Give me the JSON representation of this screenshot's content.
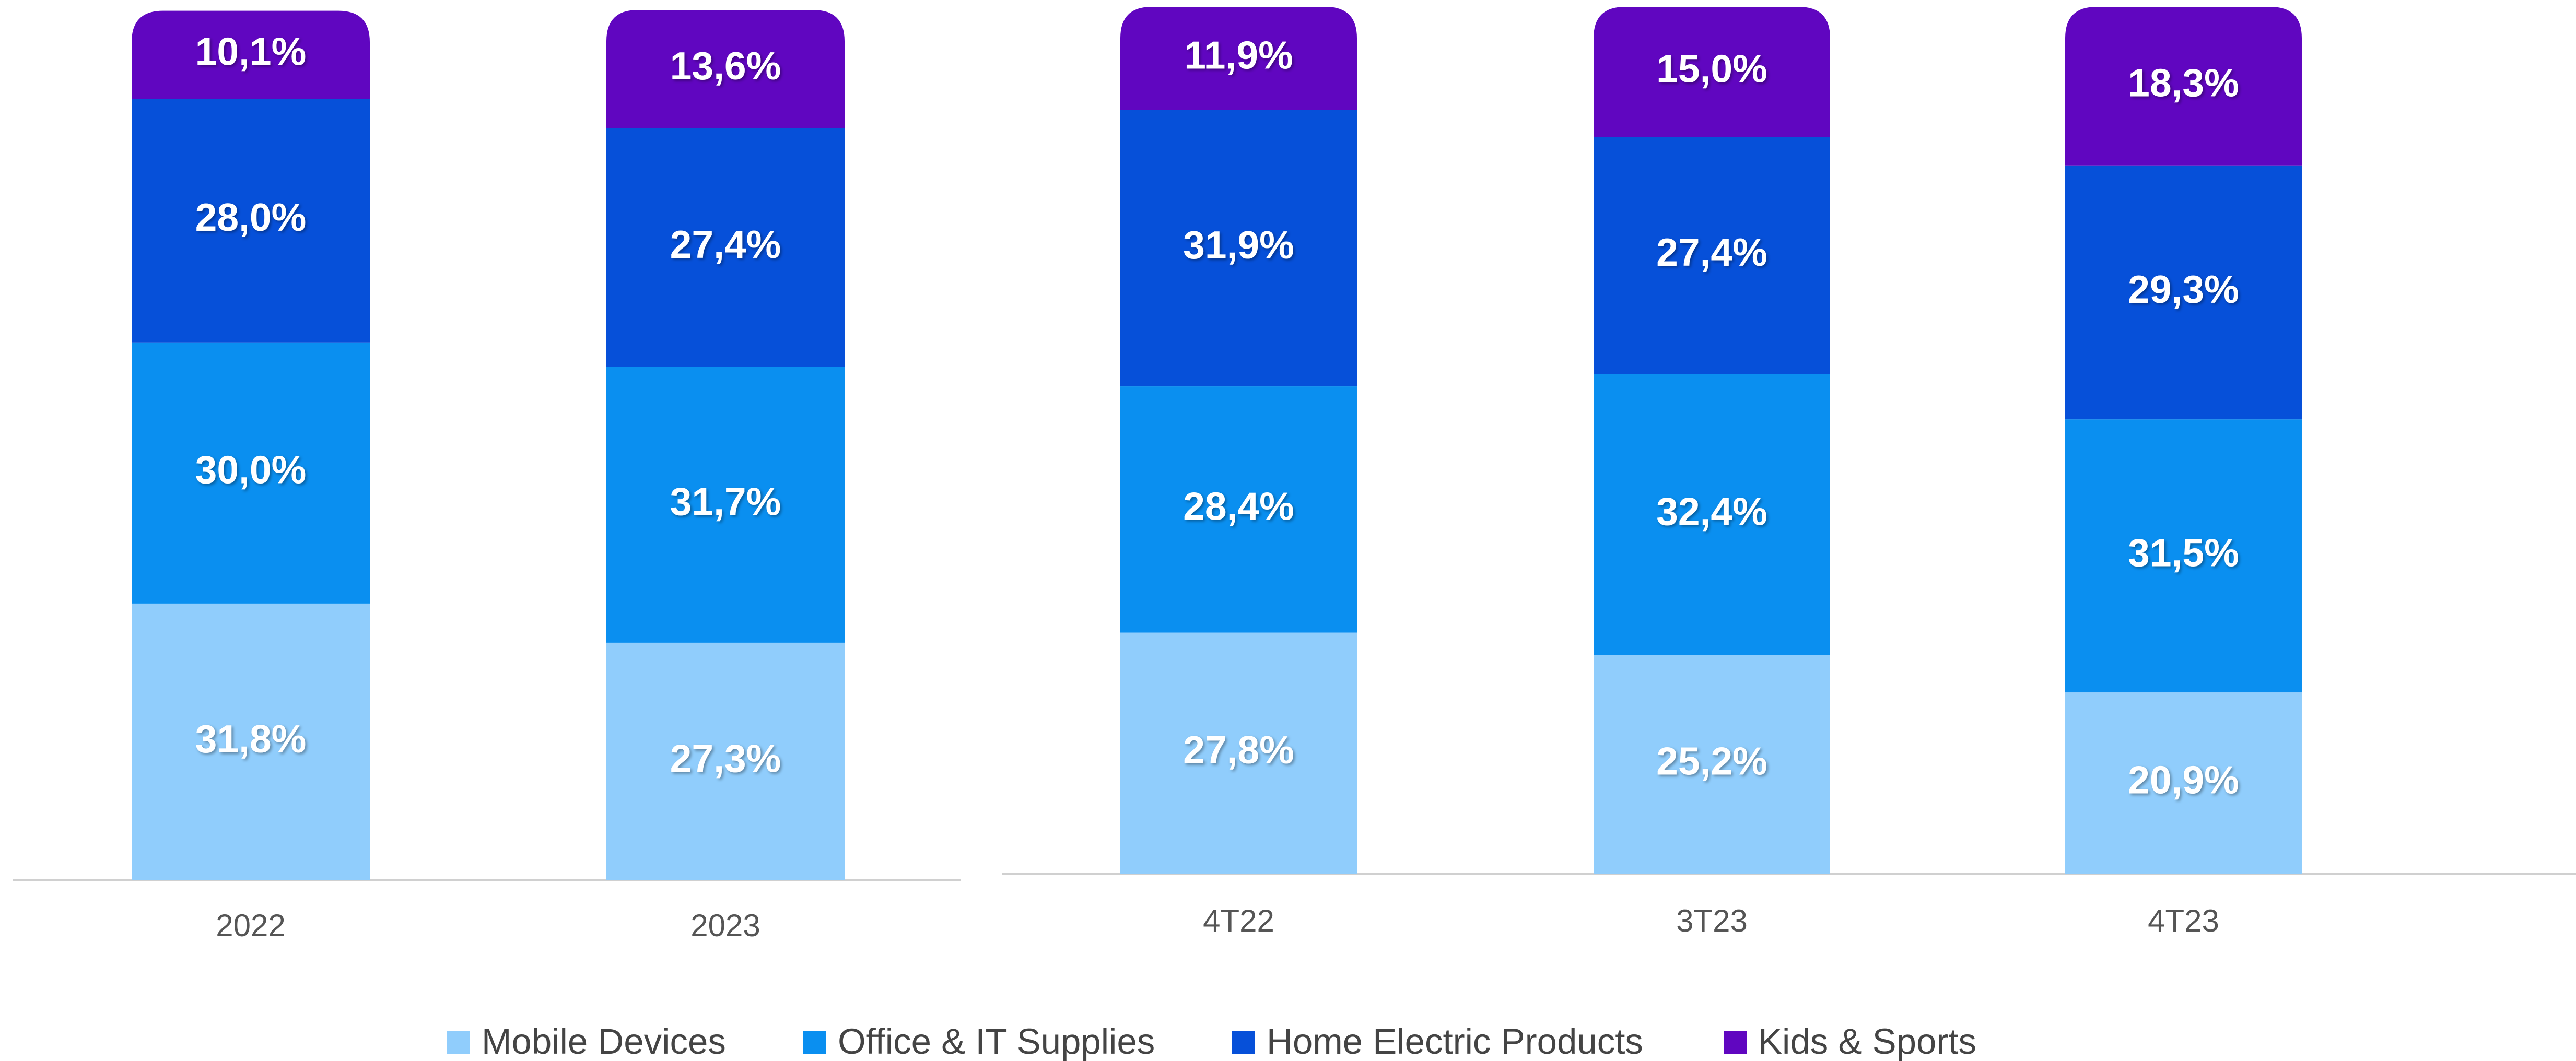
{
  "legend": [
    {
      "name": "Mobile Devices",
      "color": "#90cdfc"
    },
    {
      "name": "Office & IT Supplies",
      "color": "#0a8ff0"
    },
    {
      "name": "Home Electric Products",
      "color": "#0650d9"
    },
    {
      "name": "Kids & Sports",
      "color": "#6006c0"
    }
  ],
  "chart_data": [
    {
      "type": "bar",
      "stacked": true,
      "categories": [
        "2022",
        "2023"
      ],
      "series": [
        {
          "values": [
            31.8,
            27.3
          ],
          "value_labels": [
            "31,8%",
            "27,3%"
          ]
        },
        {
          "values": [
            30.0,
            31.7
          ],
          "value_labels": [
            "30,0%",
            "31,7%"
          ]
        },
        {
          "values": [
            28.0,
            27.4
          ],
          "value_labels": [
            "28,0%",
            "27,4%"
          ]
        },
        {
          "values": [
            10.1,
            13.6
          ],
          "value_labels": [
            "10,1%",
            "13,6%"
          ]
        }
      ]
    },
    {
      "type": "bar",
      "stacked": true,
      "categories": [
        "4T22",
        "3T23",
        "4T23"
      ],
      "series": [
        {
          "values": [
            27.8,
            25.2,
            20.9
          ],
          "value_labels": [
            "27,8%",
            "25,2%",
            "20,9%"
          ]
        },
        {
          "values": [
            28.4,
            32.4,
            31.5
          ],
          "value_labels": [
            "28,4%",
            "32,4%",
            "31,5%"
          ]
        },
        {
          "values": [
            31.9,
            27.4,
            29.3
          ],
          "value_labels": [
            "31,9%",
            "27,4%",
            "29,3%"
          ]
        },
        {
          "values": [
            11.9,
            15.0,
            18.3
          ],
          "value_labels": [
            "11,9%",
            "15,0%",
            "18,3%"
          ]
        }
      ]
    }
  ]
}
